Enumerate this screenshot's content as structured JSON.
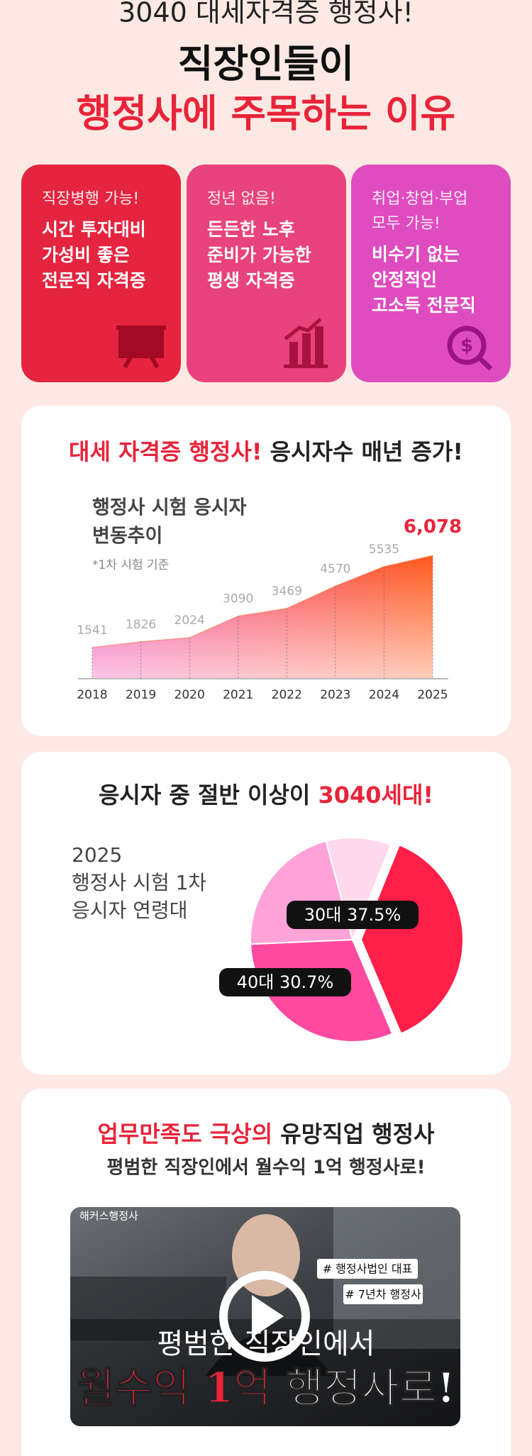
{
  "header": {
    "kicker": "3040 대세자격증 행정사!",
    "title": "직장인들이",
    "title_highlight": "행정사에 주목하는 이유"
  },
  "cards": [
    {
      "color": "#e5243f",
      "subtitle": [
        "직장병행 가능!"
      ],
      "lines": [
        "시간 투자대비",
        "가성비 좋은",
        "전문직 자격증"
      ]
    },
    {
      "color": "#e8437c",
      "subtitle": [
        "정년 없음!"
      ],
      "lines": [
        "든든한 노후",
        "준비가 가능한",
        "평생 자격증"
      ]
    },
    {
      "color": "#de4cbf",
      "subtitle": [
        "취업·창업·부업",
        "모두 가능!"
      ],
      "lines": [
        "비수기 없는",
        "안정적인",
        "고소득 전문직"
      ]
    }
  ],
  "chart_data": [
    {
      "type": "area",
      "title_highlight": "대세 자격증 행정사!",
      "title": "응시자수 매년 증가!",
      "label_lines": [
        "행정사 시험 응시자",
        "변동추이"
      ],
      "note": "*1차 시험 기준",
      "categories": [
        "2018",
        "2019",
        "2020",
        "2021",
        "2022",
        "2023",
        "2024",
        "2025"
      ],
      "values": [
        1541,
        1826,
        2024,
        3090,
        3469,
        4570,
        5535,
        6078
      ],
      "value_labels": [
        "1541",
        "1826",
        "2024",
        "3090",
        "3469",
        "4570",
        "5535",
        "6,078"
      ],
      "colors": [
        "#f040a8",
        "#ff5a1a"
      ],
      "ylim": [
        0,
        7000
      ]
    },
    {
      "type": "pie",
      "title": "응시자 중 절반 이상이",
      "title_highlight": "3040세대!",
      "label_lines": [
        "2025",
        "행정사 시험 1차",
        "응시자 연령대"
      ],
      "categories": [
        "30대",
        "40대",
        null,
        null
      ],
      "values": [
        37.5,
        30.7,
        21.5,
        10.3
      ],
      "value_labels": [
        "37.5%",
        "30.7%",
        null,
        null
      ],
      "colors": [
        "#ff1f48",
        "#ff4aa0",
        "#ffa3d8",
        "#ffd9ec"
      ]
    }
  ],
  "video": {
    "title_highlight": "업무만족도 극상의",
    "title": "유망직업 행정사",
    "subtitle": "평범한 직장인에서 월수익 1억 행정사로!",
    "brand": "해커스행정사",
    "tags": [
      "# 행정사법인 대표",
      "# 7년차 행정사"
    ],
    "caption": "평범한 직장인에서",
    "headline_highlight": "월수익 1억",
    "headline": "행정사로!"
  }
}
